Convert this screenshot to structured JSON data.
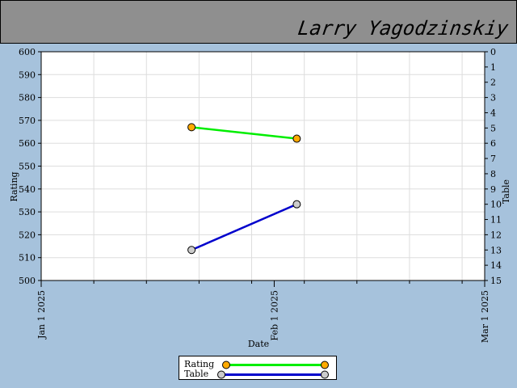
{
  "header": {
    "player_name": "Larry Yagodzinskiy"
  },
  "chart_data": {
    "type": "line",
    "xlabel": "Date",
    "ylabel": "Rating",
    "y2label": "Table",
    "x_ticks": [
      "Jan 1 2025",
      "Feb 1 2025",
      "Mar 1 2025"
    ],
    "y_ticks": [
      500,
      510,
      520,
      530,
      540,
      550,
      560,
      570,
      580,
      590,
      600
    ],
    "y2_ticks": [
      0,
      1,
      2,
      3,
      4,
      5,
      6,
      7,
      8,
      9,
      10,
      11,
      12,
      13,
      14,
      15
    ],
    "xlim": [
      "2025-01-01",
      "2025-03-01"
    ],
    "ylim": [
      500,
      600
    ],
    "y2lim": [
      15,
      0
    ],
    "grid": true,
    "legend_position": "bottom-center",
    "series": [
      {
        "name": "Rating",
        "axis": "left",
        "color": "#00ee00",
        "marker_color": "#ffaa00",
        "points": [
          {
            "x": "2025-01-21",
            "y": 567
          },
          {
            "x": "2025-02-04",
            "y": 562
          }
        ]
      },
      {
        "name": "Table",
        "axis": "right",
        "color": "#0000cc",
        "marker_color": "#cccccc",
        "points": [
          {
            "x": "2025-01-21",
            "y": 13
          },
          {
            "x": "2025-02-04",
            "y": 10
          }
        ]
      }
    ]
  }
}
